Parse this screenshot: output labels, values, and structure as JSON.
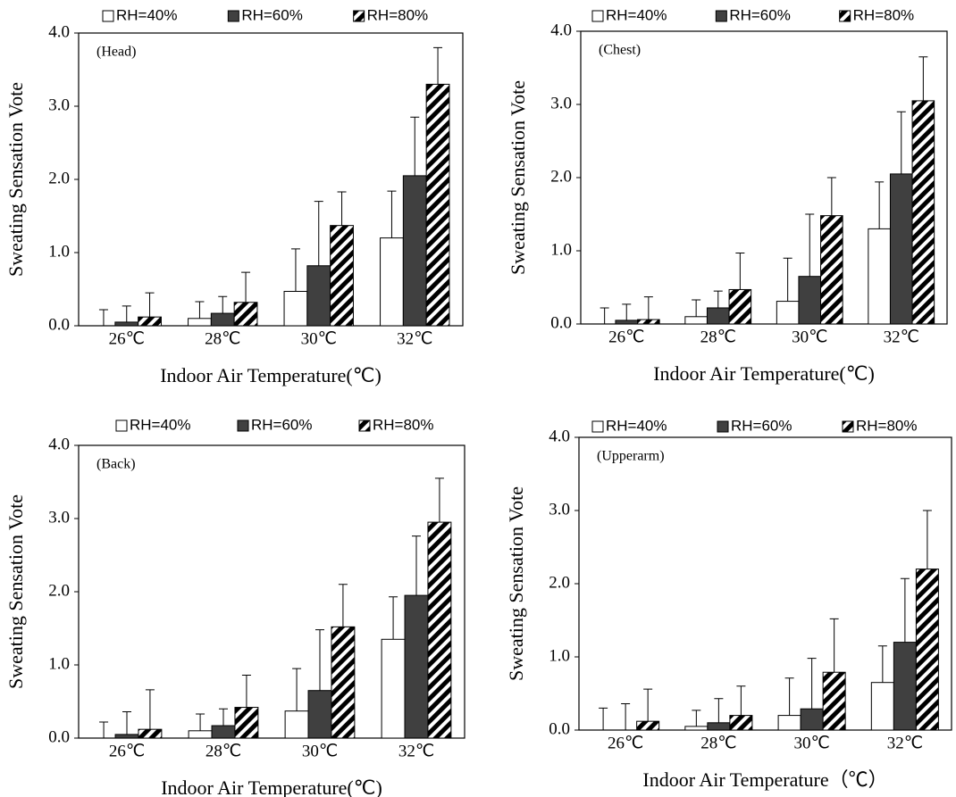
{
  "chart_data": [
    {
      "type": "bar",
      "annotation": "(Head)",
      "xlabel": "Indoor Air Temperature(℃)",
      "ylabel": "Sweating Sensation Vote",
      "categories": [
        "26℃",
        "28℃",
        "30℃",
        "32℃"
      ],
      "series": [
        {
          "name": "RH=40%",
          "color": "#ffffff",
          "values": [
            0,
            0.1,
            0.47,
            1.2
          ],
          "errors": [
            0.22,
            0.23,
            0.58,
            0.64
          ]
        },
        {
          "name": "RH=60%",
          "color": "#404040",
          "values": [
            0.05,
            0.17,
            0.82,
            2.05
          ],
          "errors": [
            0.22,
            0.23,
            0.88,
            0.8
          ]
        },
        {
          "name": "RH=80%",
          "color": "#000000",
          "hatch": true,
          "values": [
            0.12,
            0.32,
            1.37,
            3.3
          ],
          "errors": [
            0.33,
            0.41,
            0.46,
            0.5
          ]
        }
      ],
      "ylim": [
        0,
        4
      ],
      "yticks": [
        {
          "value": 0,
          "label": "0.0"
        },
        {
          "value": 1,
          "label": "1.0"
        },
        {
          "value": 2,
          "label": "2.0"
        },
        {
          "value": 3,
          "label": "3.0"
        },
        {
          "value": 4,
          "label": "4.0"
        }
      ]
    },
    {
      "type": "bar",
      "annotation": "(Chest)",
      "xlabel": "Indoor Air Temperature(℃)",
      "ylabel": "Sweating Sensation Vote",
      "categories": [
        "26℃",
        "28℃",
        "30℃",
        "32℃"
      ],
      "series": [
        {
          "name": "RH=40%",
          "color": "#ffffff",
          "values": [
            0,
            0.1,
            0.31,
            1.3
          ],
          "errors": [
            0.22,
            0.23,
            0.59,
            0.64
          ]
        },
        {
          "name": "RH=60%",
          "color": "#404040",
          "values": [
            0.05,
            0.22,
            0.65,
            2.05
          ],
          "errors": [
            0.22,
            0.23,
            0.85,
            0.85
          ]
        },
        {
          "name": "RH=80%",
          "color": "#000000",
          "hatch": true,
          "values": [
            0.06,
            0.47,
            1.48,
            3.05
          ],
          "errors": [
            0.31,
            0.5,
            0.52,
            0.6
          ]
        }
      ],
      "ylim": [
        0,
        4
      ],
      "yticks": [
        {
          "value": 0,
          "label": "0.0"
        },
        {
          "value": 1,
          "label": "1.0"
        },
        {
          "value": 2,
          "label": "2.0"
        },
        {
          "value": 3,
          "label": "3.0"
        },
        {
          "value": 4,
          "label": "4.0"
        }
      ]
    },
    {
      "type": "bar",
      "annotation": "(Back)",
      "xlabel": "Indoor Air Temperature(℃)",
      "ylabel": "Sweating Sensation Vote",
      "categories": [
        "26℃",
        "28℃",
        "30℃",
        "32℃"
      ],
      "series": [
        {
          "name": "RH=40%",
          "color": "#ffffff",
          "values": [
            0,
            0.1,
            0.37,
            1.35
          ],
          "errors": [
            0.22,
            0.23,
            0.58,
            0.58
          ]
        },
        {
          "name": "RH=60%",
          "color": "#404040",
          "values": [
            0.05,
            0.17,
            0.65,
            1.95
          ],
          "errors": [
            0.31,
            0.23,
            0.83,
            0.81
          ]
        },
        {
          "name": "RH=80%",
          "color": "#000000",
          "hatch": true,
          "values": [
            0.12,
            0.42,
            1.52,
            2.95
          ],
          "errors": [
            0.54,
            0.44,
            0.58,
            0.6
          ]
        }
      ],
      "ylim": [
        0,
        4
      ],
      "yticks": [
        {
          "value": 0,
          "label": "0.0"
        },
        {
          "value": 1,
          "label": "1.0"
        },
        {
          "value": 2,
          "label": "2.0"
        },
        {
          "value": 3,
          "label": "3.0"
        },
        {
          "value": 4,
          "label": "4.0"
        }
      ]
    },
    {
      "type": "bar",
      "annotation": "(Upperarm)",
      "xlabel": "Indoor Air Temperature（℃）",
      "ylabel": "Sweating Sensation Vote",
      "categories": [
        "26℃",
        "28℃",
        "30℃",
        "32℃"
      ],
      "series": [
        {
          "name": "RH=40%",
          "color": "#ffffff",
          "values": [
            0,
            0.05,
            0.2,
            0.65
          ],
          "errors": [
            0.3,
            0.22,
            0.51,
            0.5
          ]
        },
        {
          "name": "RH=60%",
          "color": "#404040",
          "values": [
            0,
            0.1,
            0.29,
            1.2
          ],
          "errors": [
            0.36,
            0.33,
            0.69,
            0.87
          ]
        },
        {
          "name": "RH=80%",
          "color": "#000000",
          "hatch": true,
          "values": [
            0.12,
            0.2,
            0.79,
            2.2
          ],
          "errors": [
            0.44,
            0.4,
            0.73,
            0.8
          ]
        }
      ],
      "ylim": [
        0,
        4
      ],
      "yticks": [
        {
          "value": 0,
          "label": "0.0"
        },
        {
          "value": 1,
          "label": "1.0"
        },
        {
          "value": 2,
          "label": "2.0"
        },
        {
          "value": 3,
          "label": "3.0"
        },
        {
          "value": 4,
          "label": "4.0"
        }
      ]
    }
  ]
}
